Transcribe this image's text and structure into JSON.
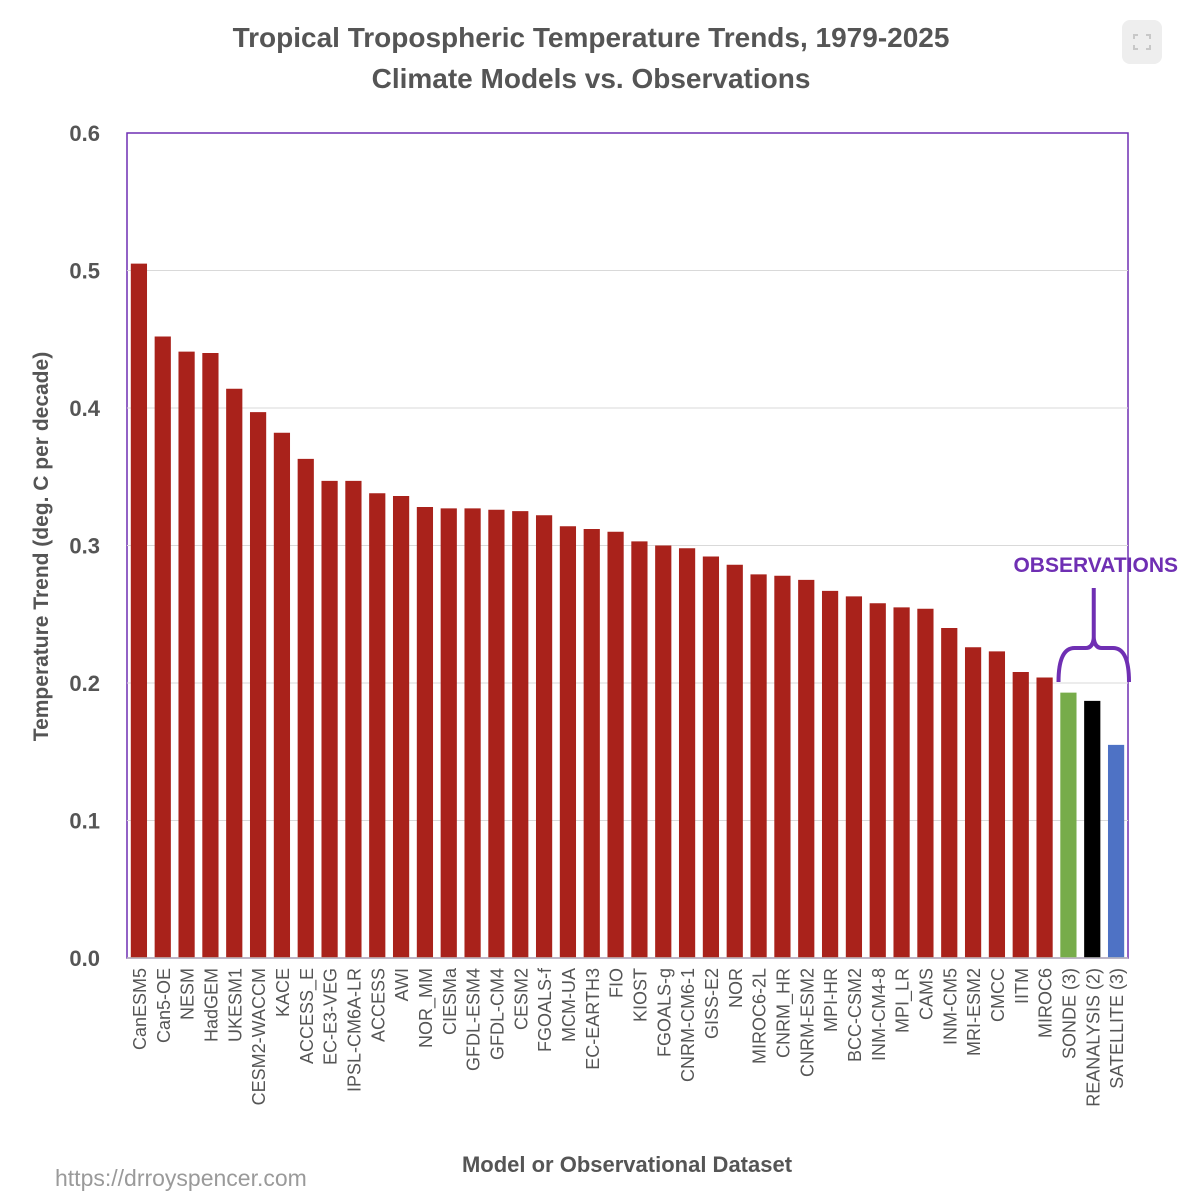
{
  "chart_data": {
    "type": "bar",
    "title": "Tropical Tropospheric Temperature Trends, 1979-2025",
    "subtitle": "Climate Models vs. Observations",
    "xlabel": "Model or Observational Dataset",
    "ylabel": "Temperature Trend (deg. C per decade)",
    "ylim": [
      0,
      0.6
    ],
    "yticks": [
      "0.0",
      "0.1",
      "0.2",
      "0.3",
      "0.4",
      "0.5",
      "0.6"
    ],
    "grid": true,
    "categories": [
      "CanESM5",
      "Can5-OE",
      "NESM",
      "HadGEM",
      "UKESM1",
      "CESM2-WACCM",
      "KACE",
      "ACCESS_E",
      "EC-E3-VEG",
      "IPSL-CM6A-LR",
      "ACCESS",
      "AWI",
      "NOR_MM",
      "CIESMa",
      "GFDL-ESM4",
      "GFDL-CM4",
      "CESM2",
      "FGOALS-f",
      "MCM-UA",
      "EC-EARTH3",
      "FIO",
      "KIOST",
      "FGOALS-g",
      "CNRM-CM6-1",
      "GISS-E2",
      "NOR",
      "MIROC6-2L",
      "CNRM_HR",
      "CNRM-ESM2",
      "MPI-HR",
      "BCC-CSM2",
      "INM-CM4-8",
      "MPI_LR",
      "CAMS",
      "INM-CM5",
      "MRI-ESM2",
      "CMCC",
      "IITM",
      "MIROC6",
      "SONDE (3)",
      "REANALYSIS (2)",
      "SATELLITE (3)"
    ],
    "values": [
      0.505,
      0.452,
      0.441,
      0.44,
      0.414,
      0.397,
      0.382,
      0.363,
      0.347,
      0.347,
      0.338,
      0.336,
      0.328,
      0.327,
      0.327,
      0.326,
      0.325,
      0.322,
      0.314,
      0.312,
      0.31,
      0.303,
      0.3,
      0.298,
      0.292,
      0.286,
      0.279,
      0.278,
      0.275,
      0.267,
      0.263,
      0.258,
      0.255,
      0.254,
      0.24,
      0.226,
      0.223,
      0.208,
      0.204,
      0.193,
      0.187,
      0.155
    ],
    "bar_colors": [
      "#a9221b",
      "#a9221b",
      "#a9221b",
      "#a9221b",
      "#a9221b",
      "#a9221b",
      "#a9221b",
      "#a9221b",
      "#a9221b",
      "#a9221b",
      "#a9221b",
      "#a9221b",
      "#a9221b",
      "#a9221b",
      "#a9221b",
      "#a9221b",
      "#a9221b",
      "#a9221b",
      "#a9221b",
      "#a9221b",
      "#a9221b",
      "#a9221b",
      "#a9221b",
      "#a9221b",
      "#a9221b",
      "#a9221b",
      "#a9221b",
      "#a9221b",
      "#a9221b",
      "#a9221b",
      "#a9221b",
      "#a9221b",
      "#a9221b",
      "#a9221b",
      "#a9221b",
      "#a9221b",
      "#a9221b",
      "#a9221b",
      "#a9221b",
      "#77ac4a",
      "#000000",
      "#4e72c5"
    ],
    "annotation": {
      "text": "OBSERVATIONS",
      "color": "#6f2fb3",
      "spans": [
        "SONDE (3)",
        "REANALYSIS (2)",
        "SATELLITE (3)"
      ]
    },
    "frame_color": "#6f2fb3"
  },
  "source": "https://drroyspencer.com",
  "expand_icon": "expand-icon"
}
